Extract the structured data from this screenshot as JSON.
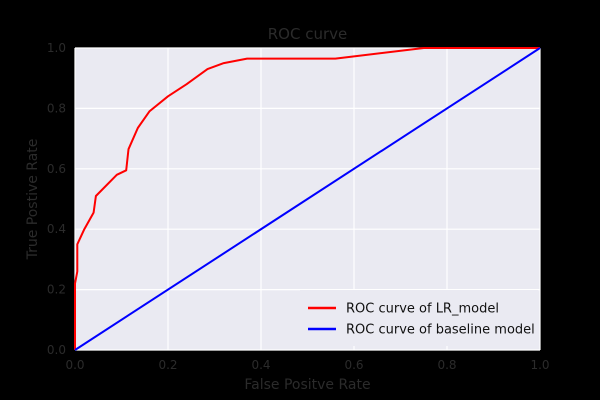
{
  "chart_data": {
    "type": "line",
    "title": "ROC curve",
    "xlabel": "False Positve Rate",
    "ylabel": "True Postive Rate",
    "xlim": [
      0.0,
      1.0
    ],
    "ylim": [
      0.0,
      1.0
    ],
    "x_ticks": [
      "0.0",
      "0.2",
      "0.4",
      "0.6",
      "0.8",
      "1.0"
    ],
    "y_ticks": [
      "0.0",
      "0.2",
      "0.4",
      "0.6",
      "0.8",
      "1.0"
    ],
    "grid": true,
    "legend_position": "bottom-right",
    "colors": {
      "figure_bg": "#000000",
      "plot_bg": "#eaeaf2",
      "grid": "#ffffff",
      "text": "#2b2b2b"
    },
    "series": [
      {
        "name": "ROC curve of LR_model",
        "color": "#ff0000",
        "points": [
          [
            0.0,
            0.0
          ],
          [
            0.0,
            0.22
          ],
          [
            0.005,
            0.26
          ],
          [
            0.005,
            0.35
          ],
          [
            0.02,
            0.4
          ],
          [
            0.04,
            0.455
          ],
          [
            0.045,
            0.51
          ],
          [
            0.09,
            0.58
          ],
          [
            0.11,
            0.595
          ],
          [
            0.115,
            0.665
          ],
          [
            0.135,
            0.735
          ],
          [
            0.16,
            0.79
          ],
          [
            0.2,
            0.84
          ],
          [
            0.24,
            0.88
          ],
          [
            0.285,
            0.93
          ],
          [
            0.32,
            0.95
          ],
          [
            0.37,
            0.965
          ],
          [
            0.56,
            0.965
          ],
          [
            0.75,
            1.0
          ],
          [
            1.0,
            1.0
          ]
        ]
      },
      {
        "name": "ROC curve of baseline model",
        "color": "#0000ff",
        "points": [
          [
            0.0,
            0.0
          ],
          [
            1.0,
            1.0
          ]
        ]
      }
    ]
  }
}
